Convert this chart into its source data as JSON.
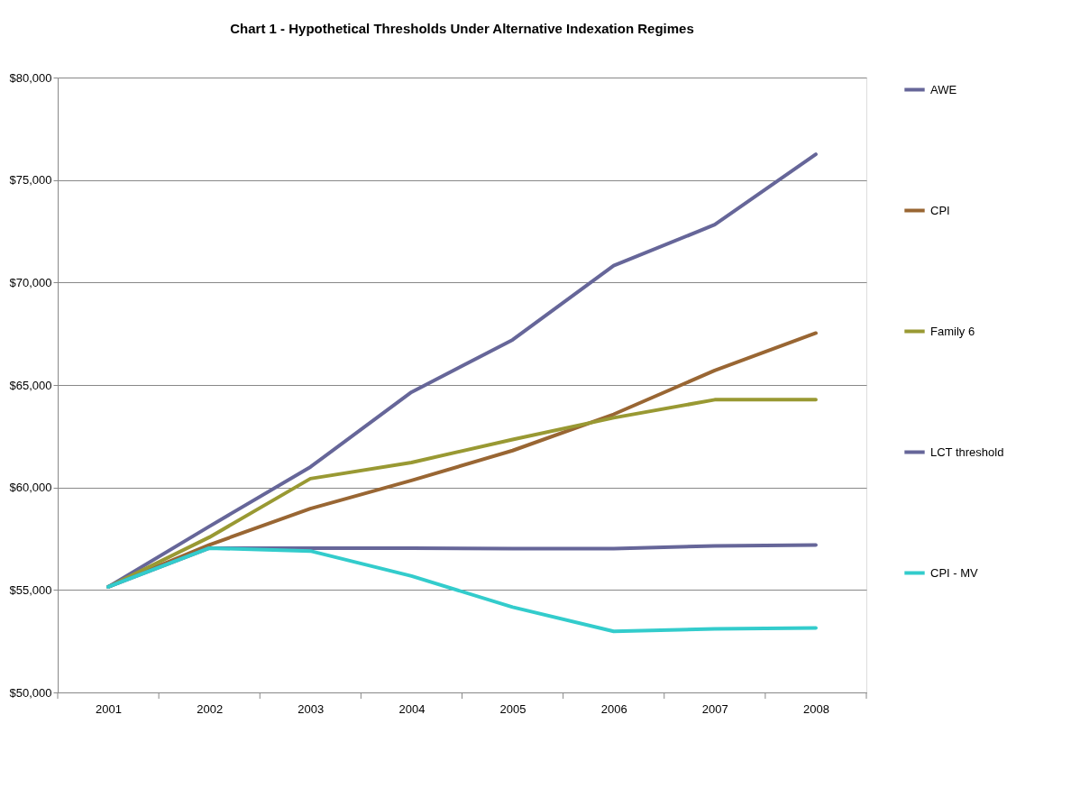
{
  "chart_data": {
    "type": "line",
    "title": "Chart 1 - Hypothetical Thresholds Under Alternative Indexation Regimes",
    "categories": [
      "2001",
      "2002",
      "2003",
      "2004",
      "2005",
      "2006",
      "2007",
      "2008"
    ],
    "series": [
      {
        "name": "AWE",
        "color": "#666699",
        "values": [
          55150,
          58100,
          61000,
          64650,
          67200,
          70820,
          72820,
          76260
        ]
      },
      {
        "name": "CPI",
        "color": "#996633",
        "values": [
          55150,
          57200,
          58970,
          60340,
          61800,
          63570,
          65710,
          67530
        ]
      },
      {
        "name": "Family 6",
        "color": "#999933",
        "values": [
          55150,
          57570,
          60430,
          61220,
          62340,
          63400,
          64280,
          64280
        ]
      },
      {
        "name": "LCT threshold",
        "color": "#666699",
        "values": [
          55150,
          57040,
          57040,
          57040,
          57020,
          57020,
          57150,
          57190
        ]
      },
      {
        "name": "CPI - MV",
        "color": "#33cccc",
        "values": [
          55150,
          57040,
          56900,
          55680,
          54160,
          52980,
          53100,
          53150
        ]
      }
    ],
    "ylim": [
      50000,
      80000
    ],
    "yticks": [
      {
        "value": 50000,
        "label": "$50,000"
      },
      {
        "value": 55000,
        "label": "$55,000"
      },
      {
        "value": 60000,
        "label": "$60,000"
      },
      {
        "value": 65000,
        "label": "$65,000"
      },
      {
        "value": 70000,
        "label": "$70,000"
      },
      {
        "value": 75000,
        "label": "$75,000"
      },
      {
        "value": 80000,
        "label": "$80,000"
      }
    ],
    "grid": "y",
    "legend": "right",
    "marker": "none",
    "line_style": "solid"
  }
}
